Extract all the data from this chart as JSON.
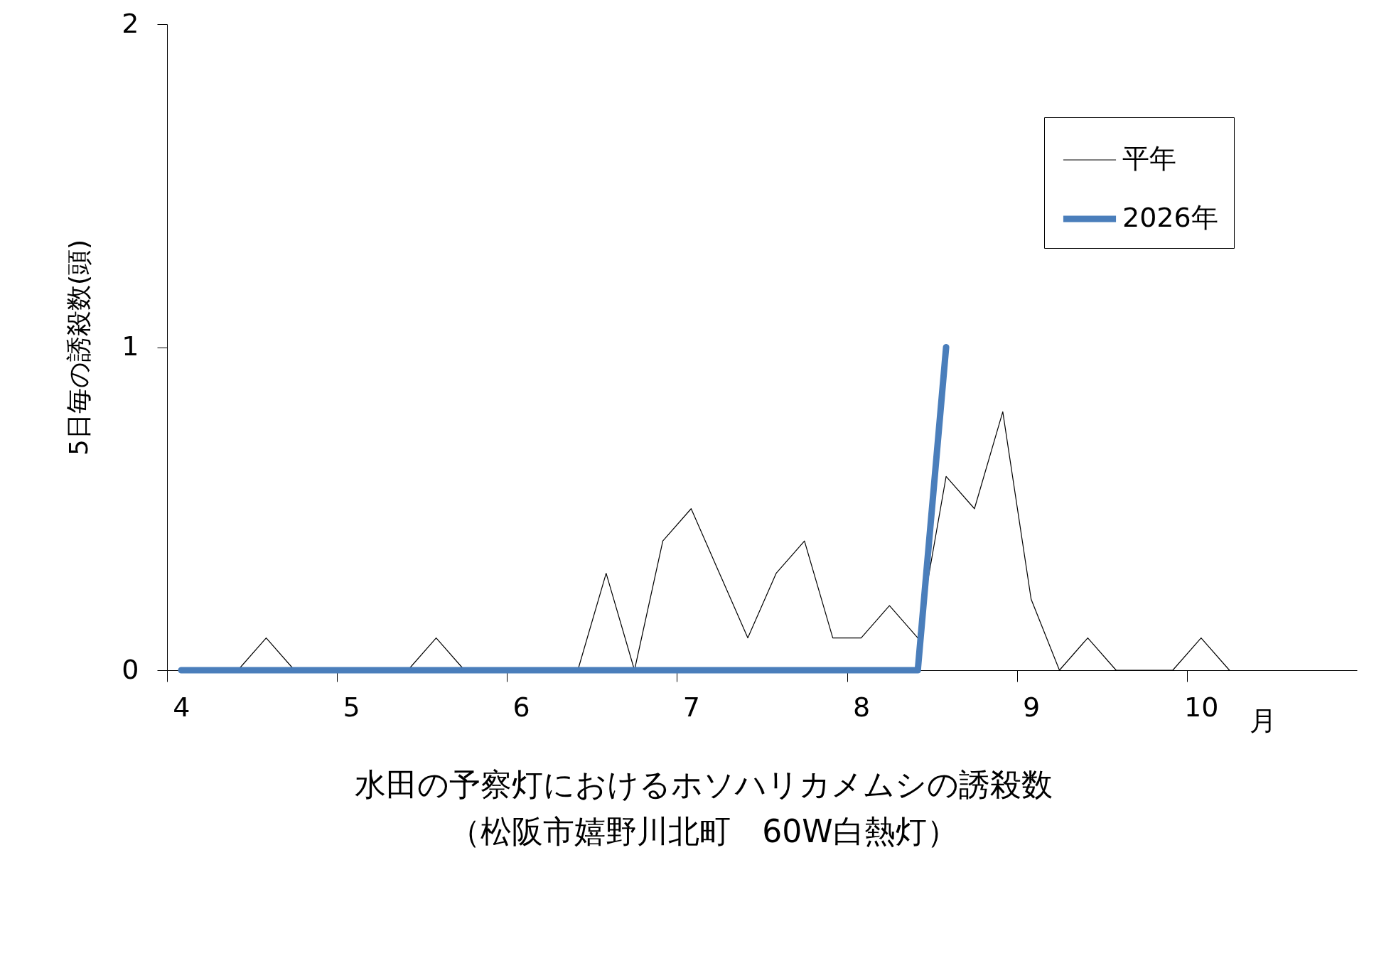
{
  "chart_data": {
    "type": "line",
    "title": "水田の予察灯におけるホソハリカメムシの誘殺数",
    "subtitle": "（松阪市嬉野川北町　60W白熱灯）",
    "xlabel": "月",
    "ylabel": "5日毎の誘殺数(頭)",
    "categories": [
      "4",
      null,
      null,
      null,
      null,
      null,
      "5",
      null,
      null,
      null,
      null,
      null,
      "6",
      null,
      null,
      null,
      null,
      null,
      "7",
      null,
      null,
      null,
      null,
      null,
      "8",
      null,
      null,
      null,
      null,
      null,
      "9",
      null,
      null,
      null,
      null,
      null,
      "10",
      null,
      null,
      null,
      null,
      null
    ],
    "series": [
      {
        "name": "平年",
        "color": "#000000",
        "values": [
          0,
          0,
          0,
          0.1,
          0,
          0,
          0,
          0,
          0,
          0.1,
          0,
          0,
          0,
          0,
          0,
          0.3,
          0,
          0.4,
          0.5,
          0.3,
          0.1,
          0.3,
          0.4,
          0.1,
          0.1,
          0.2,
          0.1,
          0.6,
          0.5,
          0.8,
          0.22,
          0,
          0.1,
          0,
          0,
          0,
          0.1,
          0,
          null,
          null,
          null,
          null
        ]
      },
      {
        "name": "2026年",
        "color": "#4a7ebb",
        "values": [
          0,
          0,
          0,
          0,
          0,
          0,
          0,
          0,
          0,
          0,
          0,
          0,
          0,
          0,
          0,
          0,
          0,
          0,
          0,
          0,
          0,
          0,
          0,
          0,
          0,
          0,
          0,
          1,
          null,
          null,
          null,
          null,
          null,
          null,
          null,
          null,
          null,
          null,
          null,
          null,
          null,
          null
        ]
      }
    ],
    "ylim": [
      0,
      2
    ],
    "yticks": [
      0,
      1,
      2
    ],
    "legend": "top right"
  }
}
